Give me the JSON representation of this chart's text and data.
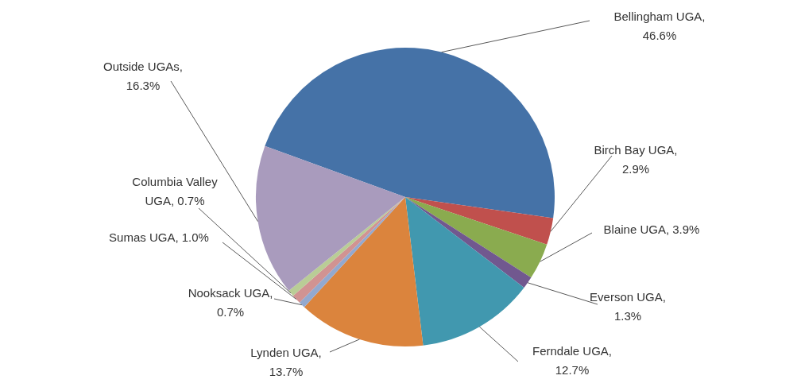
{
  "chart_data": {
    "type": "pie",
    "categories": [
      "Bellingham UGA, 46.6%",
      "Birch Bay UGA, 2.9%",
      "Blaine UGA, 3.9%",
      "Everson UGA, 1.3%",
      "Ferndale UGA, 12.7%",
      "Lynden UGA, 13.7%",
      "Nooksack UGA, 0.7%",
      "Sumas UGA, 1.0%",
      "Columbia Valley UGA, 0.7%",
      "Outside UGAs, 16.3%"
    ],
    "values": [
      46.6,
      2.9,
      3.9,
      1.3,
      12.7,
      13.7,
      0.7,
      1.0,
      0.7,
      16.3
    ],
    "colors": [
      "#4572a7",
      "#c0504d",
      "#8aab4f",
      "#71588f",
      "#4198af",
      "#db843d",
      "#93a9cf",
      "#d19392",
      "#b9cd96",
      "#a99bbd"
    ],
    "legend": false
  }
}
